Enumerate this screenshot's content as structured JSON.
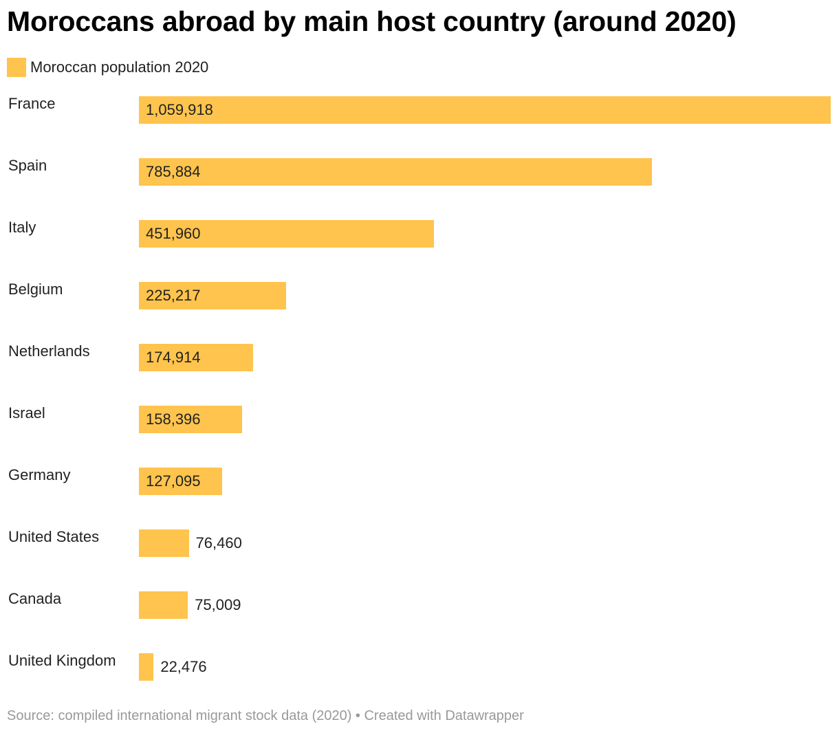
{
  "title": "Moroccans abroad by main host country (around 2020)",
  "legend": {
    "label": "Moroccan population 2020",
    "color": "#ffc44d"
  },
  "chart_data": {
    "type": "bar",
    "orientation": "horizontal",
    "title": "Moroccans abroad by main host country (around 2020)",
    "categories": [
      "France",
      "Spain",
      "Italy",
      "Belgium",
      "Netherlands",
      "Israel",
      "Germany",
      "United States",
      "Canada",
      "United Kingdom"
    ],
    "series": [
      {
        "name": "Moroccan population 2020",
        "color": "#ffc44d",
        "values": [
          1059918,
          785884,
          451960,
          225217,
          174914,
          158396,
          127095,
          76460,
          75009,
          22476
        ],
        "value_labels": [
          "1,059,918",
          "785,884",
          "451,960",
          "225,217",
          "174,914",
          "158,396",
          "127,095",
          "76,460",
          "75,009",
          "22,476"
        ]
      }
    ],
    "xlim": [
      0,
      1059918
    ],
    "xlabel": "",
    "ylabel": "",
    "grid": false,
    "legend_position": "top-left"
  },
  "footer": {
    "source": "Source: compiled international migrant stock data (2020) • Created with Datawrapper"
  }
}
